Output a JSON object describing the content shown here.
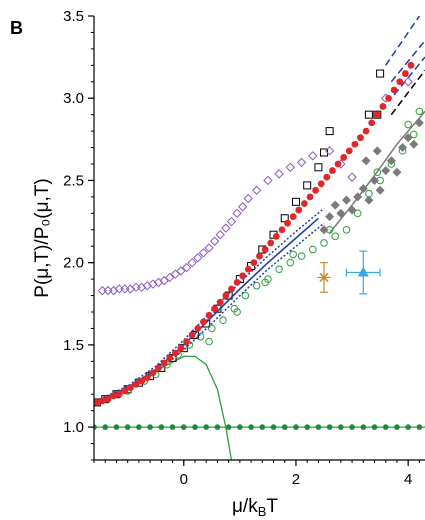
{
  "chart_data": {
    "type": "scatter",
    "panel_label": "B",
    "xlabel": "μ/k_BT",
    "xlabel_main": "μ/k",
    "xlabel_sub": "B",
    "xlabel_tail": "T",
    "ylabel": "P(μ,T)/P₀(μ,T)",
    "xlim": [
      -1.6,
      4.3
    ],
    "ylim": [
      0.8,
      3.5
    ],
    "grid": false,
    "x_ticks": [
      0,
      2,
      4
    ],
    "x_tick_labels": [
      "0",
      "2",
      "4"
    ],
    "y_ticks": [
      1.0,
      1.5,
      2.0,
      2.5,
      3.0,
      3.5
    ],
    "y_tick_labels": [
      "1.0",
      "1.5",
      "2.0",
      "2.5",
      "3.0",
      "3.5"
    ],
    "colors": {
      "red": "#e3262a",
      "black_square": "#000000",
      "purple": "#8a5cc2",
      "gray": "#7a7a7a",
      "green": "#2e9e3a",
      "green_dot": "#1f8a3c",
      "blue": "#1f3fa8",
      "orange": "#c98a2e",
      "cyan": "#3aa8e0"
    },
    "series": [
      {
        "kind": "green_horizontal_line",
        "values": [
          [
            -1.6,
            1.0
          ],
          [
            4.3,
            1.0
          ]
        ]
      },
      {
        "kind": "green_peaked_curve",
        "values": [
          [
            -1.6,
            1.13
          ],
          [
            -1.2,
            1.2
          ],
          [
            -0.8,
            1.28
          ],
          [
            -0.4,
            1.36
          ],
          [
            0.0,
            1.43
          ],
          [
            0.2,
            1.43
          ],
          [
            0.4,
            1.38
          ],
          [
            0.6,
            1.23
          ],
          [
            0.75,
            1.0
          ],
          [
            0.85,
            0.8
          ]
        ]
      },
      {
        "kind": "gray_curve",
        "values": [
          [
            2.6,
            2.18
          ],
          [
            3.0,
            2.35
          ],
          [
            3.4,
            2.53
          ],
          [
            3.8,
            2.72
          ],
          [
            4.3,
            2.92
          ]
        ]
      },
      {
        "kind": "blue_dashed_line",
        "values": [
          [
            3.6,
            3.2
          ],
          [
            4.3,
            3.55
          ]
        ]
      },
      {
        "kind": "blue_dashed_line",
        "values": [
          [
            3.7,
            3.1
          ],
          [
            4.3,
            3.35
          ]
        ]
      },
      {
        "kind": "blue_dashed_line",
        "values": [
          [
            3.75,
            3.02
          ],
          [
            4.3,
            3.25
          ]
        ]
      },
      {
        "kind": "black_dashed_line",
        "values": [
          [
            3.7,
            2.9
          ],
          [
            4.3,
            3.17
          ]
        ]
      },
      {
        "kind": "blue_solid_line",
        "values": [
          [
            -1.6,
            1.15
          ],
          [
            -1.0,
            1.24
          ],
          [
            -0.5,
            1.35
          ],
          [
            0.0,
            1.5
          ],
          [
            0.5,
            1.67
          ],
          [
            1.0,
            1.84
          ],
          [
            1.5,
            2.0
          ],
          [
            2.0,
            2.15
          ],
          [
            2.4,
            2.27
          ]
        ]
      },
      {
        "kind": "blue_dotted_line",
        "values": [
          [
            -1.5,
            1.16
          ],
          [
            -1.0,
            1.23
          ],
          [
            -0.5,
            1.33
          ],
          [
            0.0,
            1.47
          ],
          [
            0.5,
            1.63
          ],
          [
            1.0,
            1.8
          ],
          [
            1.5,
            1.96
          ],
          [
            2.0,
            2.1
          ],
          [
            2.5,
            2.24
          ]
        ]
      },
      {
        "kind": "blue_dotted_line",
        "values": [
          [
            -1.5,
            1.17
          ],
          [
            -1.0,
            1.25
          ],
          [
            -0.5,
            1.37
          ],
          [
            0.0,
            1.53
          ],
          [
            0.5,
            1.71
          ],
          [
            1.0,
            1.88
          ],
          [
            1.5,
            2.04
          ],
          [
            2.0,
            2.19
          ],
          [
            2.5,
            2.33
          ]
        ]
      },
      {
        "kind": "green_dots_on_one",
        "values": [
          [
            -1.6,
            1.0
          ],
          [
            -1.4,
            1.0
          ],
          [
            -1.2,
            1.0
          ],
          [
            -1.0,
            1.0
          ],
          [
            -0.8,
            1.0
          ],
          [
            -0.6,
            1.0
          ],
          [
            -0.4,
            1.0
          ],
          [
            -0.2,
            1.0
          ],
          [
            0.0,
            1.0
          ],
          [
            0.2,
            1.0
          ],
          [
            0.4,
            1.0
          ],
          [
            0.6,
            1.0
          ],
          [
            0.8,
            1.0
          ],
          [
            1.0,
            1.0
          ],
          [
            1.2,
            1.0
          ],
          [
            1.4,
            1.0
          ],
          [
            1.6,
            1.0
          ],
          [
            1.8,
            1.0
          ],
          [
            2.0,
            1.0
          ],
          [
            2.2,
            1.0
          ],
          [
            2.4,
            1.0
          ],
          [
            2.6,
            1.0
          ],
          [
            2.8,
            1.0
          ],
          [
            3.0,
            1.0
          ],
          [
            3.2,
            1.0
          ],
          [
            3.4,
            1.0
          ],
          [
            3.6,
            1.0
          ],
          [
            3.8,
            1.0
          ],
          [
            4.0,
            1.0
          ],
          [
            4.2,
            1.0
          ]
        ]
      },
      {
        "kind": "red_dots",
        "values": [
          [
            -1.55,
            1.15
          ],
          [
            -1.45,
            1.16
          ],
          [
            -1.35,
            1.17
          ],
          [
            -1.25,
            1.19
          ],
          [
            -1.15,
            1.2
          ],
          [
            -1.05,
            1.22
          ],
          [
            -0.95,
            1.24
          ],
          [
            -0.85,
            1.26
          ],
          [
            -0.75,
            1.28
          ],
          [
            -0.65,
            1.3
          ],
          [
            -0.55,
            1.33
          ],
          [
            -0.45,
            1.36
          ],
          [
            -0.35,
            1.39
          ],
          [
            -0.25,
            1.42
          ],
          [
            -0.15,
            1.45
          ],
          [
            -0.05,
            1.48
          ],
          [
            0.05,
            1.52
          ],
          [
            0.15,
            1.56
          ],
          [
            0.25,
            1.6
          ],
          [
            0.35,
            1.64
          ],
          [
            0.45,
            1.68
          ],
          [
            0.55,
            1.72
          ],
          [
            0.65,
            1.76
          ],
          [
            0.75,
            1.8
          ],
          [
            0.85,
            1.84
          ],
          [
            0.95,
            1.88
          ],
          [
            1.05,
            1.92
          ],
          [
            1.15,
            1.96
          ],
          [
            1.25,
            2.0
          ],
          [
            1.35,
            2.04
          ],
          [
            1.45,
            2.08
          ],
          [
            1.55,
            2.12
          ],
          [
            1.65,
            2.16
          ],
          [
            1.75,
            2.2
          ],
          [
            1.85,
            2.24
          ],
          [
            1.95,
            2.28
          ],
          [
            2.05,
            2.32
          ],
          [
            2.15,
            2.36
          ],
          [
            2.25,
            2.4
          ],
          [
            2.35,
            2.44
          ],
          [
            2.45,
            2.48
          ],
          [
            2.55,
            2.52
          ],
          [
            2.65,
            2.56
          ],
          [
            2.75,
            2.6
          ],
          [
            2.85,
            2.64
          ],
          [
            2.95,
            2.68
          ],
          [
            3.05,
            2.72
          ],
          [
            3.15,
            2.76
          ],
          [
            3.25,
            2.8
          ],
          [
            3.35,
            2.85
          ],
          [
            3.45,
            2.9
          ],
          [
            3.55,
            2.95
          ],
          [
            3.65,
            3.0
          ],
          [
            3.75,
            3.05
          ],
          [
            3.85,
            3.1
          ],
          [
            3.95,
            3.15
          ],
          [
            4.05,
            3.2
          ]
        ]
      },
      {
        "kind": "black_open_squares",
        "values": [
          [
            -1.55,
            1.15
          ],
          [
            -1.4,
            1.17
          ],
          [
            -1.2,
            1.2
          ],
          [
            -1.0,
            1.23
          ],
          [
            -0.8,
            1.27
          ],
          [
            -0.6,
            1.31
          ],
          [
            -0.4,
            1.36
          ],
          [
            -0.2,
            1.42
          ],
          [
            0.0,
            1.48
          ],
          [
            0.2,
            1.56
          ],
          [
            0.4,
            1.63
          ],
          [
            0.6,
            1.72
          ],
          [
            0.8,
            1.8
          ],
          [
            1.0,
            1.9
          ],
          [
            1.2,
            1.98
          ],
          [
            1.4,
            2.08
          ],
          [
            1.6,
            2.17
          ],
          [
            1.8,
            2.27
          ],
          [
            2.0,
            2.37
          ],
          [
            2.2,
            2.47
          ],
          [
            2.4,
            2.58
          ],
          [
            2.5,
            2.67
          ],
          [
            2.6,
            2.8
          ],
          [
            3.3,
            2.9
          ],
          [
            3.5,
            3.15
          ],
          [
            3.45,
            2.9
          ]
        ]
      },
      {
        "kind": "purple_open_diamonds",
        "values": [
          [
            -1.45,
            1.83
          ],
          [
            -1.35,
            1.83
          ],
          [
            -1.25,
            1.83
          ],
          [
            -1.15,
            1.84
          ],
          [
            -1.05,
            1.84
          ],
          [
            -0.95,
            1.84
          ],
          [
            -0.85,
            1.85
          ],
          [
            -0.75,
            1.85
          ],
          [
            -0.65,
            1.86
          ],
          [
            -0.55,
            1.87
          ],
          [
            -0.45,
            1.88
          ],
          [
            -0.35,
            1.89
          ],
          [
            -0.25,
            1.91
          ],
          [
            -0.15,
            1.93
          ],
          [
            -0.05,
            1.95
          ],
          [
            0.05,
            1.97
          ],
          [
            0.15,
            2.0
          ],
          [
            0.25,
            2.03
          ],
          [
            0.35,
            2.06
          ],
          [
            0.45,
            2.09
          ],
          [
            0.55,
            2.13
          ],
          [
            0.65,
            2.17
          ],
          [
            0.75,
            2.21
          ],
          [
            0.85,
            2.25
          ],
          [
            0.95,
            2.3
          ],
          [
            1.05,
            2.34
          ],
          [
            1.15,
            2.39
          ],
          [
            1.3,
            2.44
          ],
          [
            1.5,
            2.5
          ],
          [
            1.7,
            2.54
          ],
          [
            1.9,
            2.58
          ],
          [
            2.1,
            2.61
          ],
          [
            2.3,
            2.65
          ],
          [
            2.6,
            2.68
          ],
          [
            2.8,
            2.6
          ],
          [
            3.0,
            2.52
          ],
          [
            3.6,
            3.0
          ],
          [
            4.0,
            3.1
          ]
        ]
      },
      {
        "kind": "green_open_circles",
        "values": [
          [
            -1.0,
            1.22
          ],
          [
            -0.7,
            1.28
          ],
          [
            -0.5,
            1.32
          ],
          [
            -0.3,
            1.38
          ],
          [
            -0.1,
            1.44
          ],
          [
            0.1,
            1.5
          ],
          [
            0.3,
            1.55
          ],
          [
            0.5,
            1.6
          ],
          [
            0.7,
            1.65
          ],
          [
            0.9,
            1.72
          ],
          [
            1.1,
            1.8
          ],
          [
            1.3,
            1.86
          ],
          [
            1.5,
            1.9
          ],
          [
            1.7,
            1.96
          ],
          [
            1.9,
            2.0
          ],
          [
            2.1,
            2.04
          ],
          [
            2.3,
            2.08
          ],
          [
            2.5,
            2.12
          ],
          [
            2.7,
            2.16
          ],
          [
            2.9,
            2.2
          ],
          [
            3.1,
            2.3
          ],
          [
            3.3,
            2.42
          ],
          [
            3.5,
            2.5
          ],
          [
            3.7,
            2.6
          ],
          [
            3.9,
            2.68
          ],
          [
            4.1,
            2.78
          ],
          [
            0.45,
            1.52
          ],
          [
            0.95,
            1.7
          ],
          [
            1.45,
            1.88
          ],
          [
            1.95,
            2.05
          ],
          [
            2.6,
            2.2
          ],
          [
            3.45,
            2.55
          ],
          [
            4.0,
            2.84
          ],
          [
            4.2,
            2.92
          ]
        ]
      },
      {
        "kind": "gray_filled_diamonds",
        "values": [
          [
            2.5,
            2.2
          ],
          [
            2.6,
            2.28
          ],
          [
            2.7,
            2.35
          ],
          [
            2.8,
            2.3
          ],
          [
            2.9,
            2.38
          ],
          [
            3.0,
            2.32
          ],
          [
            3.1,
            2.4
          ],
          [
            3.2,
            2.45
          ],
          [
            3.3,
            2.38
          ],
          [
            3.4,
            2.5
          ],
          [
            3.5,
            2.44
          ],
          [
            3.6,
            2.56
          ],
          [
            3.7,
            2.62
          ],
          [
            3.8,
            2.55
          ],
          [
            3.9,
            2.7
          ],
          [
            4.0,
            2.76
          ],
          [
            4.1,
            2.72
          ],
          [
            4.2,
            2.85
          ],
          [
            3.25,
            2.62
          ],
          [
            3.45,
            2.68
          ]
        ]
      },
      {
        "kind": "orange_point_with_error",
        "values": [
          [
            2.5,
            1.91
          ]
        ],
        "xerr": 0.12,
        "yerr": 0.09
      },
      {
        "kind": "cyan_triangle_with_error",
        "values": [
          [
            3.2,
            1.94
          ]
        ],
        "xerr": 0.3,
        "yerr": 0.13
      }
    ]
  }
}
